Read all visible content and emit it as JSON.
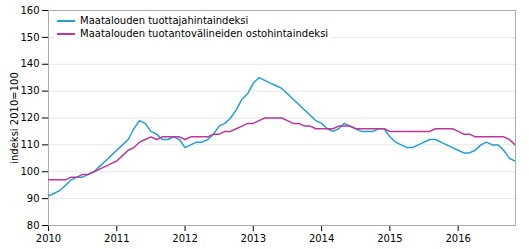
{
  "chart_data": {
    "type": "line",
    "x": [
      2010,
      2010.0833333333333,
      2010.1666666666667,
      2010.25,
      2010.3333333333333,
      2010.4166666666667,
      2010.5,
      2010.5833333333333,
      2010.6666666666667,
      2010.75,
      2010.8333333333333,
      2010.9166666666667,
      2011,
      2011.0833333333333,
      2011.1666666666667,
      2011.25,
      2011.3333333333333,
      2011.4166666666667,
      2011.5,
      2011.5833333333333,
      2011.6666666666667,
      2011.75,
      2011.8333333333333,
      2011.9166666666667,
      2012,
      2012.0833333333333,
      2012.1666666666667,
      2012.25,
      2012.3333333333333,
      2012.4166666666667,
      2012.5,
      2012.5833333333333,
      2012.6666666666667,
      2012.75,
      2012.8333333333333,
      2012.9166666666667,
      2013,
      2013.0833333333333,
      2013.1666666666667,
      2013.25,
      2013.3333333333333,
      2013.4166666666667,
      2013.5,
      2013.5833333333333,
      2013.6666666666667,
      2013.75,
      2013.8333333333333,
      2013.9166666666667,
      2014,
      2014.0833333333333,
      2014.1666666666667,
      2014.25,
      2014.3333333333333,
      2014.4166666666667,
      2014.5,
      2014.5833333333333,
      2014.6666666666667,
      2014.75,
      2014.8333333333333,
      2014.9166666666667,
      2015,
      2015.0833333333333,
      2015.1666666666667,
      2015.25,
      2015.3333333333333,
      2015.4166666666667,
      2015.5,
      2015.5833333333333,
      2015.6666666666667,
      2015.75,
      2015.8333333333333,
      2015.9166666666667,
      2016,
      2016.0833333333333,
      2016.1666666666667,
      2016.25,
      2016.3333333333333,
      2016.4166666666667,
      2016.5,
      2016.5833333333333,
      2016.6666666666667,
      2016.75,
      2016.8333333333333
    ],
    "series": [
      {
        "name": "Maatalouden tuottajahintaindeksi",
        "color": "#1fa0d8",
        "values": [
          91,
          92,
          93,
          95,
          97,
          98,
          98,
          99,
          100,
          102,
          104,
          106,
          108,
          110,
          112,
          116,
          119,
          118,
          115,
          114,
          112,
          112,
          113,
          112,
          109,
          110,
          111,
          111,
          112,
          114,
          117,
          118,
          120,
          123,
          127,
          129,
          133,
          135,
          134,
          133,
          132,
          131,
          129,
          127,
          125,
          123,
          121,
          119,
          118,
          116,
          115,
          116,
          118,
          117,
          116,
          115,
          115,
          115,
          116,
          116,
          113,
          111,
          110,
          109,
          109,
          110,
          111,
          112,
          112,
          111,
          110,
          109,
          108,
          107,
          107,
          108,
          110,
          111,
          110,
          110,
          108,
          105,
          104
        ]
      },
      {
        "name": "Maatalouden tuotantovälineiden ostohintaindeksi",
        "color": "#c0359a",
        "values": [
          97,
          97,
          97,
          97,
          98,
          98,
          99,
          99,
          100,
          101,
          102,
          103,
          104,
          106,
          108,
          109,
          111,
          112,
          113,
          112,
          113,
          113,
          113,
          113,
          112,
          113,
          113,
          113,
          113,
          114,
          114,
          115,
          115,
          116,
          117,
          118,
          118,
          119,
          120,
          120,
          120,
          120,
          119,
          118,
          118,
          117,
          117,
          116,
          116,
          116,
          116,
          117,
          117,
          117,
          116,
          116,
          116,
          116,
          116,
          116,
          115,
          115,
          115,
          115,
          115,
          115,
          115,
          115,
          116,
          116,
          116,
          116,
          115,
          114,
          114,
          113,
          113,
          113,
          113,
          113,
          113,
          112,
          110
        ]
      }
    ],
    "ylabel": "indeksi 2010=100",
    "xlim": [
      2010.0,
      2016.84
    ],
    "xticks": [
      2010,
      2011,
      2012,
      2013,
      2014,
      2015,
      2016
    ],
    "ylim": [
      80,
      160
    ],
    "yticks": [
      80,
      90,
      100,
      110,
      120,
      130,
      140,
      150,
      160
    ],
    "grid": true,
    "legend": "upper left"
  }
}
